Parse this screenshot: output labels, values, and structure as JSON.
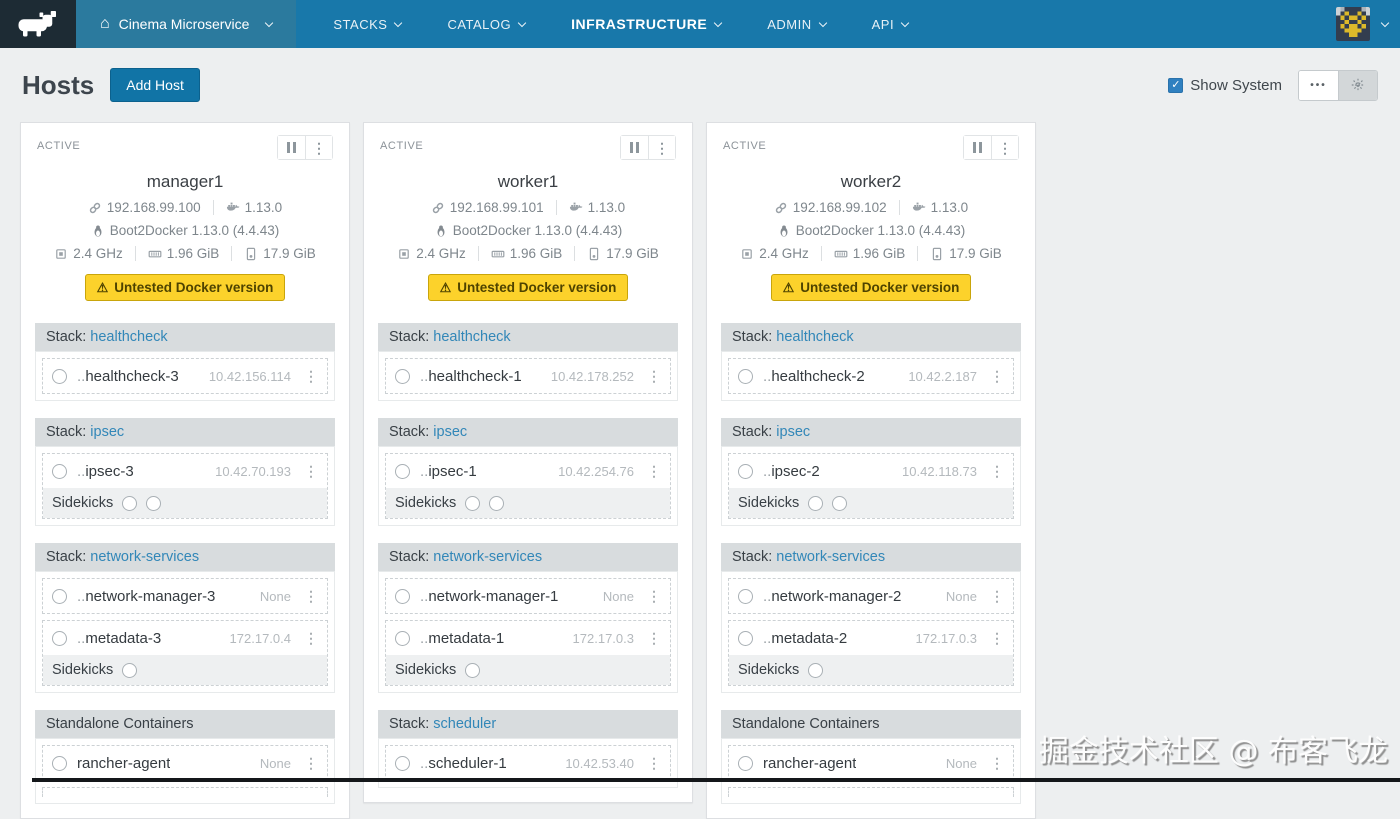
{
  "icons": {
    "kebab": "⋮",
    "home": "⌂",
    "check": "✓",
    "more": "•••",
    "warning": "⚠"
  },
  "colors": {
    "nav_blue": "#1878aa",
    "env_blue": "#2b7a9e",
    "accent": "#1174a6",
    "warning_bg": "#fcd22b",
    "link": "#3287b8"
  },
  "nav": {
    "environment_label": "Cinema Microservice",
    "items": [
      {
        "label": "STACKS",
        "active": false
      },
      {
        "label": "CATALOG",
        "active": false
      },
      {
        "label": "INFRASTRUCTURE",
        "active": true
      },
      {
        "label": "ADMIN",
        "active": false
      },
      {
        "label": "API",
        "active": false
      }
    ]
  },
  "header": {
    "title": "Hosts",
    "add_host_label": "Add Host",
    "show_system_label": "Show System",
    "show_system_checked": true
  },
  "hosts": [
    {
      "state": "ACTIVE",
      "name": "manager1",
      "ip": "192.168.99.100",
      "docker_version": "1.13.0",
      "os": "Boot2Docker 1.13.0 (4.4.43)",
      "cpu": "2.4 GHz",
      "memory": "1.96 GiB",
      "storage": "17.9 GiB",
      "warning": "Untested Docker version",
      "sections": [
        {
          "label": "Stack:",
          "link": "healthcheck",
          "groups": [
            {
              "rows": [
                {
                  "prefix": "..",
                  "name": "healthcheck-3",
                  "detail": "10.42.156.114"
                }
              ]
            }
          ]
        },
        {
          "label": "Stack:",
          "link": "ipsec",
          "groups": [
            {
              "rows": [
                {
                  "prefix": "..",
                  "name": "ipsec-3",
                  "detail": "10.42.70.193"
                }
              ],
              "sidekicks": {
                "label": "Sidekicks",
                "count": 2
              }
            }
          ]
        },
        {
          "label": "Stack:",
          "link": "network-services",
          "groups": [
            {
              "rows": [
                {
                  "prefix": "..",
                  "name": "network-manager-3",
                  "detail": "None"
                }
              ]
            },
            {
              "rows": [
                {
                  "prefix": "..",
                  "name": "metadata-3",
                  "detail": "172.17.0.4"
                }
              ],
              "sidekicks": {
                "label": "Sidekicks",
                "count": 1
              }
            }
          ]
        },
        {
          "label": "Standalone Containers",
          "link": "",
          "groups": [
            {
              "rows": [
                {
                  "prefix": "",
                  "name": "rancher-agent",
                  "detail": "None"
                }
              ]
            },
            {
              "rows": [],
              "partial": true
            }
          ]
        }
      ]
    },
    {
      "state": "ACTIVE",
      "name": "worker1",
      "ip": "192.168.99.101",
      "docker_version": "1.13.0",
      "os": "Boot2Docker 1.13.0 (4.4.43)",
      "cpu": "2.4 GHz",
      "memory": "1.96 GiB",
      "storage": "17.9 GiB",
      "warning": "Untested Docker version",
      "sections": [
        {
          "label": "Stack:",
          "link": "healthcheck",
          "groups": [
            {
              "rows": [
                {
                  "prefix": "..",
                  "name": "healthcheck-1",
                  "detail": "10.42.178.252"
                }
              ]
            }
          ]
        },
        {
          "label": "Stack:",
          "link": "ipsec",
          "groups": [
            {
              "rows": [
                {
                  "prefix": "..",
                  "name": "ipsec-1",
                  "detail": "10.42.254.76"
                }
              ],
              "sidekicks": {
                "label": "Sidekicks",
                "count": 2
              }
            }
          ]
        },
        {
          "label": "Stack:",
          "link": "network-services",
          "groups": [
            {
              "rows": [
                {
                  "prefix": "..",
                  "name": "network-manager-1",
                  "detail": "None"
                }
              ]
            },
            {
              "rows": [
                {
                  "prefix": "..",
                  "name": "metadata-1",
                  "detail": "172.17.0.3"
                }
              ],
              "sidekicks": {
                "label": "Sidekicks",
                "count": 1
              }
            }
          ]
        },
        {
          "label": "Stack:",
          "link": "scheduler",
          "groups": [
            {
              "rows": [
                {
                  "prefix": "..",
                  "name": "scheduler-1",
                  "detail": "10.42.53.40"
                }
              ]
            }
          ]
        }
      ]
    },
    {
      "state": "ACTIVE",
      "name": "worker2",
      "ip": "192.168.99.102",
      "docker_version": "1.13.0",
      "os": "Boot2Docker 1.13.0 (4.4.43)",
      "cpu": "2.4 GHz",
      "memory": "1.96 GiB",
      "storage": "17.9 GiB",
      "warning": "Untested Docker version",
      "sections": [
        {
          "label": "Stack:",
          "link": "healthcheck",
          "groups": [
            {
              "rows": [
                {
                  "prefix": "..",
                  "name": "healthcheck-2",
                  "detail": "10.42.2.187"
                }
              ]
            }
          ]
        },
        {
          "label": "Stack:",
          "link": "ipsec",
          "groups": [
            {
              "rows": [
                {
                  "prefix": "..",
                  "name": "ipsec-2",
                  "detail": "10.42.118.73"
                }
              ],
              "sidekicks": {
                "label": "Sidekicks",
                "count": 2
              }
            }
          ]
        },
        {
          "label": "Stack:",
          "link": "network-services",
          "groups": [
            {
              "rows": [
                {
                  "prefix": "..",
                  "name": "network-manager-2",
                  "detail": "None"
                }
              ]
            },
            {
              "rows": [
                {
                  "prefix": "..",
                  "name": "metadata-2",
                  "detail": "172.17.0.3"
                }
              ],
              "sidekicks": {
                "label": "Sidekicks",
                "count": 1
              }
            }
          ]
        },
        {
          "label": "Standalone Containers",
          "link": "",
          "groups": [
            {
              "rows": [
                {
                  "prefix": "",
                  "name": "rancher-agent",
                  "detail": "None"
                }
              ]
            },
            {
              "rows": [],
              "partial": true
            }
          ]
        }
      ]
    }
  ],
  "watermark": "掘金技术社区 @ 布客飞龙"
}
